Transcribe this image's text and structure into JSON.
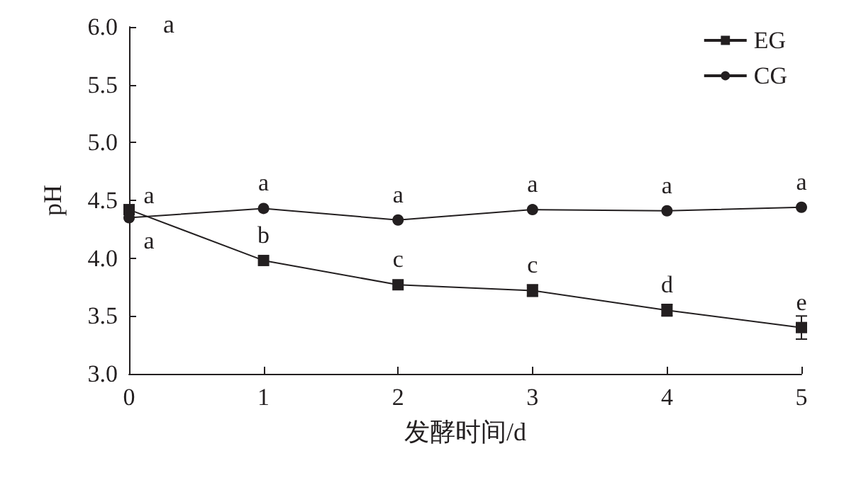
{
  "chart_data": {
    "type": "line",
    "xlabel": "发酵时间/d",
    "ylabel": "pH",
    "x": [
      0,
      1,
      2,
      3,
      4,
      5
    ],
    "xlim": [
      0,
      5
    ],
    "xticks": [
      0,
      1,
      2,
      3,
      4,
      5
    ],
    "ylim": [
      3.0,
      6.0
    ],
    "yticks": [
      {
        "value": 3,
        "label": "3.0"
      },
      {
        "value": 3.5,
        "label": "3.5"
      },
      {
        "value": 4,
        "label": "4.0"
      },
      {
        "value": 4.5,
        "label": "4.5"
      },
      {
        "value": 5,
        "label": "5.0"
      },
      {
        "value": 5.5,
        "label": "5.5"
      },
      {
        "value": 6,
        "label": "6.0"
      }
    ],
    "grid": false,
    "legend": "top right",
    "series": [
      {
        "name": "EG",
        "color": "#231f20",
        "marker": "square",
        "values": [
          4.42,
          3.98,
          3.77,
          3.72,
          3.55,
          3.4
        ],
        "errors": [
          null,
          null,
          null,
          0.05,
          0.05,
          0.1
        ]
      },
      {
        "name": "CG",
        "color": "#231f20",
        "marker": "circle",
        "values": [
          4.35,
          4.43,
          4.33,
          4.42,
          4.41,
          4.44
        ]
      }
    ],
    "annotations": [
      "a",
      {
        "text": "a",
        "x": 0,
        "y": 4.42
      },
      {
        "text": "a",
        "x": 0,
        "y": 4.35
      },
      {
        "text": "b",
        "x": 1,
        "y": 3.98
      },
      {
        "text": "a",
        "x": 1,
        "y": 4.43
      },
      {
        "text": "c",
        "x": 2,
        "y": 3.77
      },
      {
        "text": "a",
        "x": 2,
        "y": 4.33
      },
      {
        "text": "c",
        "x": 3,
        "y": 3.72
      },
      {
        "text": "a",
        "x": 3,
        "y": 4.42
      },
      {
        "text": "d",
        "x": 4,
        "y": 3.55
      },
      {
        "text": "a",
        "x": 4,
        "y": 4.41
      },
      {
        "text": "e",
        "x": 5,
        "y": 3.4
      },
      {
        "text": "a",
        "x": 5,
        "y": 4.44
      }
    ]
  }
}
